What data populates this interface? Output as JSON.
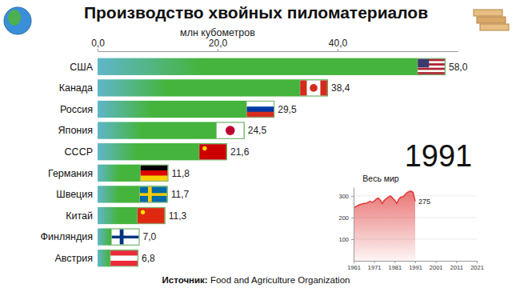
{
  "chart_data": [
    {
      "type": "bar",
      "title": "Производство хвойных пиломатериалов",
      "x_label": "млн кубометров",
      "orientation": "horizontal",
      "categories": [
        "США",
        "Канада",
        "Россия",
        "Япония",
        "СССР",
        "Германия",
        "Швеция",
        "Китай",
        "Финляндия",
        "Австрия"
      ],
      "values": [
        58.0,
        38.4,
        29.5,
        24.5,
        21.6,
        11.8,
        11.7,
        11.3,
        7.0,
        6.8
      ],
      "value_labels": [
        "58,0",
        "38,4",
        "29,5",
        "24,5",
        "21,6",
        "11,8",
        "11,7",
        "11,3",
        "7,0",
        "6,8"
      ],
      "data_labels": true,
      "color": "#45b43c",
      "xlim": [
        0,
        60
      ],
      "xticks": [
        {
          "value": 0,
          "label": "0,0"
        },
        {
          "value": 20,
          "label": "20,0"
        },
        {
          "value": 40,
          "label": "40,0"
        }
      ],
      "annotations": [
        "1991",
        "Источник: Food and Agriculture Organization"
      ]
    },
    {
      "type": "line",
      "title": "Весь мир",
      "x": [
        1961,
        1962,
        1963,
        1964,
        1965,
        1966,
        1967,
        1968,
        1969,
        1970,
        1971,
        1972,
        1973,
        1974,
        1975,
        1976,
        1977,
        1978,
        1979,
        1980,
        1981,
        1982,
        1983,
        1984,
        1985,
        1986,
        1987,
        1988,
        1989,
        1990,
        1991
      ],
      "values": [
        245,
        250,
        255,
        260,
        262,
        265,
        265,
        270,
        275,
        270,
        275,
        285,
        290,
        280,
        265,
        280,
        288,
        295,
        300,
        290,
        280,
        265,
        285,
        295,
        295,
        305,
        315,
        320,
        322,
        315,
        275
      ],
      "value_labels": [
        null,
        null,
        null,
        null,
        null,
        null,
        null,
        null,
        null,
        null,
        null,
        null,
        null,
        null,
        null,
        null,
        null,
        null,
        null,
        null,
        null,
        null,
        null,
        null,
        null,
        null,
        null,
        null,
        null,
        null,
        "275"
      ],
      "data_labels": true,
      "color": "#e03a3a",
      "grid": true,
      "xlim": [
        1961,
        2021
      ],
      "xticks": [
        1961,
        1971,
        1981,
        1991,
        2001,
        2011,
        2021
      ],
      "ylim": [
        0,
        340
      ],
      "yticks": [
        100,
        200,
        300
      ]
    }
  ]
}
